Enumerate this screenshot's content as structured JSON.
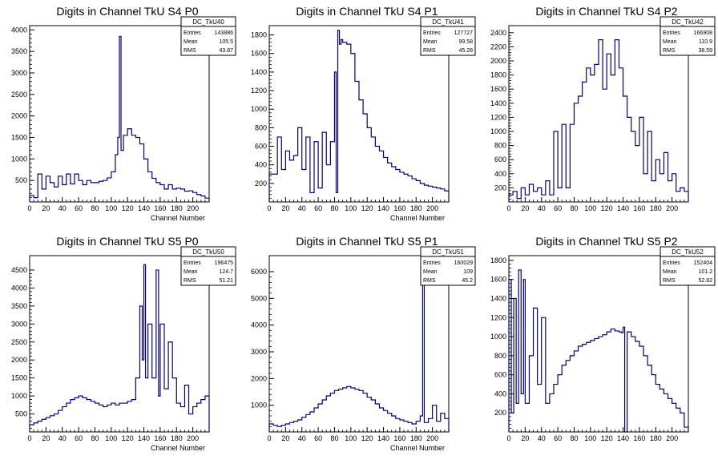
{
  "chart_data": [
    {
      "type": "histogram",
      "title": "Digits in Channel TkU S4 P0",
      "xlabel": "Channel Number",
      "ylabel": "",
      "xlim": [
        0,
        220
      ],
      "ylim": [
        0,
        4100
      ],
      "xticks": [
        0,
        20,
        40,
        60,
        80,
        100,
        120,
        140,
        160,
        180,
        200
      ],
      "yticks": [
        500,
        1000,
        1500,
        2000,
        2500,
        3000,
        3500,
        4000
      ],
      "stats": {
        "name": "DC_TkU40",
        "entries": "143886",
        "mean": "105.5",
        "rms": "43.87"
      },
      "x": [
        0,
        5,
        10,
        15,
        20,
        25,
        30,
        35,
        40,
        45,
        50,
        55,
        60,
        65,
        70,
        75,
        80,
        85,
        90,
        95,
        100,
        105,
        108,
        110,
        112,
        115,
        120,
        125,
        130,
        135,
        140,
        145,
        150,
        155,
        160,
        165,
        170,
        175,
        180,
        185,
        190,
        195,
        200,
        205,
        210,
        215
      ],
      "values": [
        150,
        100,
        650,
        300,
        600,
        450,
        350,
        600,
        400,
        650,
        420,
        650,
        500,
        400,
        500,
        450,
        450,
        480,
        500,
        560,
        700,
        1100,
        1500,
        3850,
        1200,
        1550,
        1700,
        1550,
        1500,
        1350,
        1000,
        700,
        550,
        450,
        400,
        300,
        400,
        300,
        320,
        300,
        250,
        260,
        220,
        170,
        140,
        90
      ]
    },
    {
      "type": "histogram",
      "title": "Digits in Channel TkU S4 P1",
      "xlabel": "Channel Number",
      "ylabel": "",
      "xlim": [
        0,
        220
      ],
      "ylim": [
        0,
        1900
      ],
      "xticks": [
        0,
        20,
        40,
        60,
        80,
        100,
        120,
        140,
        160,
        180,
        200
      ],
      "yticks": [
        200,
        400,
        600,
        800,
        1000,
        1200,
        1400,
        1600,
        1800
      ],
      "stats": {
        "name": "DC_TkU41",
        "entries": "127727",
        "mean": "99.58",
        "rms": "45.28"
      },
      "x": [
        0,
        5,
        10,
        15,
        20,
        25,
        30,
        35,
        40,
        45,
        50,
        55,
        60,
        65,
        70,
        75,
        80,
        82,
        84,
        86,
        88,
        90,
        95,
        100,
        105,
        110,
        115,
        120,
        125,
        130,
        135,
        140,
        145,
        150,
        155,
        160,
        165,
        170,
        175,
        180,
        185,
        190,
        195,
        200,
        205,
        210,
        215
      ],
      "values": [
        300,
        300,
        700,
        350,
        550,
        450,
        500,
        800,
        350,
        700,
        100,
        650,
        150,
        750,
        400,
        650,
        1400,
        100,
        1850,
        1700,
        1750,
        1720,
        1700,
        1600,
        1300,
        1100,
        950,
        800,
        700,
        600,
        550,
        480,
        420,
        380,
        350,
        320,
        300,
        280,
        250,
        230,
        200,
        180,
        170,
        160,
        150,
        140,
        120
      ]
    },
    {
      "type": "histogram",
      "title": "Digits in Channel TkU S4 P2",
      "xlabel": "",
      "ylabel": "",
      "xlim": [
        0,
        220
      ],
      "ylim": [
        0,
        2500
      ],
      "xticks": [
        0,
        20,
        40,
        60,
        80,
        100,
        120,
        140,
        160,
        180,
        200
      ],
      "yticks": [
        200,
        400,
        600,
        800,
        1000,
        1200,
        1400,
        1600,
        1800,
        2000,
        2200,
        2400
      ],
      "stats": {
        "name": "DC_TkU42",
        "entries": "166908",
        "mean": "110.9",
        "rms": "38.59"
      },
      "x": [
        0,
        5,
        10,
        15,
        20,
        25,
        30,
        35,
        40,
        45,
        50,
        55,
        60,
        65,
        70,
        75,
        80,
        85,
        90,
        95,
        100,
        105,
        110,
        115,
        120,
        125,
        130,
        135,
        140,
        145,
        150,
        155,
        160,
        165,
        170,
        175,
        180,
        185,
        190,
        195,
        200,
        205,
        210,
        215
      ],
      "values": [
        100,
        150,
        50,
        200,
        100,
        250,
        150,
        200,
        100,
        300,
        100,
        1000,
        200,
        1100,
        200,
        1100,
        1400,
        1500,
        1700,
        1900,
        1800,
        1950,
        2300,
        1600,
        2100,
        1800,
        2300,
        1900,
        1500,
        1200,
        1000,
        800,
        1200,
        400,
        1000,
        300,
        600,
        400,
        700,
        300,
        400,
        150,
        200,
        150
      ]
    },
    {
      "type": "histogram",
      "title": "Digits in Channel TkU S5 P0",
      "xlabel": "Channel Number",
      "ylabel": "",
      "xlim": [
        0,
        220
      ],
      "ylim": [
        0,
        4900
      ],
      "xticks": [
        0,
        20,
        40,
        60,
        80,
        100,
        120,
        140,
        160,
        180,
        200
      ],
      "yticks": [
        500,
        1000,
        1500,
        2000,
        2500,
        3000,
        3500,
        4000,
        4500
      ],
      "stats": {
        "name": "DC_TkU50",
        "entries": "196475",
        "mean": "124.7",
        "rms": "51.21"
      },
      "x": [
        0,
        5,
        10,
        15,
        20,
        25,
        30,
        35,
        40,
        45,
        50,
        55,
        60,
        65,
        70,
        75,
        80,
        85,
        90,
        95,
        100,
        105,
        110,
        115,
        120,
        125,
        130,
        135,
        138,
        140,
        142,
        145,
        150,
        155,
        158,
        160,
        165,
        170,
        175,
        180,
        185,
        190,
        195,
        200,
        205,
        210,
        215
      ],
      "values": [
        200,
        250,
        300,
        350,
        400,
        450,
        500,
        600,
        700,
        800,
        900,
        950,
        1000,
        950,
        900,
        850,
        800,
        750,
        700,
        750,
        800,
        750,
        800,
        800,
        850,
        900,
        1500,
        3500,
        2000,
        4650,
        1500,
        3000,
        1500,
        4500,
        1000,
        3000,
        1200,
        2500,
        1500,
        800,
        700,
        1300,
        500,
        700,
        800,
        900,
        1000
      ]
    },
    {
      "type": "histogram",
      "title": "Digits in Channel TkU S5 P1",
      "xlabel": "Channel Number",
      "ylabel": "",
      "xlim": [
        0,
        220
      ],
      "ylim": [
        0,
        6600
      ],
      "xticks": [
        0,
        20,
        40,
        60,
        80,
        100,
        120,
        140,
        160,
        180,
        200
      ],
      "yticks": [
        1000,
        2000,
        3000,
        4000,
        5000,
        6000
      ],
      "stats": {
        "name": "DC_TkU51",
        "entries": "160029",
        "mean": "109",
        "rms": "45.2"
      },
      "x": [
        0,
        5,
        10,
        15,
        20,
        25,
        30,
        35,
        40,
        45,
        50,
        55,
        60,
        65,
        70,
        75,
        80,
        85,
        90,
        95,
        100,
        105,
        110,
        115,
        120,
        125,
        130,
        135,
        140,
        145,
        150,
        155,
        160,
        165,
        170,
        175,
        180,
        185,
        188,
        190,
        195,
        200,
        205,
        210,
        215
      ],
      "values": [
        300,
        250,
        200,
        250,
        300,
        350,
        400,
        450,
        550,
        650,
        750,
        900,
        1050,
        1200,
        1350,
        1450,
        1550,
        1600,
        1650,
        1700,
        1650,
        1600,
        1550,
        1450,
        1300,
        1200,
        1050,
        900,
        800,
        700,
        600,
        500,
        450,
        400,
        350,
        300,
        400,
        600,
        6100,
        350,
        500,
        1000,
        400,
        700,
        500
      ]
    },
    {
      "type": "histogram",
      "title": "Digits in Channel TkU S5 P2",
      "xlabel": "",
      "ylabel": "",
      "xlim": [
        0,
        220
      ],
      "ylim": [
        0,
        1850
      ],
      "xticks": [
        0,
        20,
        40,
        60,
        80,
        100,
        120,
        140,
        160,
        180,
        200
      ],
      "yticks": [
        200,
        400,
        600,
        800,
        1000,
        1200,
        1400,
        1600,
        1800
      ],
      "stats": {
        "name": "DC_TkU52",
        "entries": "152404",
        "mean": "101.2",
        "rms": "52.82"
      },
      "x": [
        0,
        3,
        6,
        9,
        12,
        15,
        18,
        20,
        25,
        30,
        35,
        40,
        45,
        50,
        55,
        60,
        65,
        70,
        75,
        80,
        85,
        90,
        95,
        100,
        105,
        110,
        115,
        120,
        125,
        130,
        135,
        138,
        140,
        142,
        145,
        150,
        155,
        160,
        165,
        170,
        175,
        180,
        185,
        190,
        195,
        200,
        205,
        210,
        215
      ],
      "values": [
        1600,
        200,
        1400,
        300,
        1700,
        400,
        1600,
        300,
        800,
        1300,
        500,
        1200,
        300,
        400,
        500,
        600,
        700,
        750,
        800,
        850,
        900,
        920,
        940,
        960,
        980,
        1000,
        1020,
        1050,
        1080,
        1060,
        1050,
        1040,
        1100,
        0,
        1050,
        1000,
        950,
        900,
        800,
        700,
        600,
        500,
        450,
        400,
        350,
        300,
        250,
        200,
        50
      ]
    }
  ]
}
